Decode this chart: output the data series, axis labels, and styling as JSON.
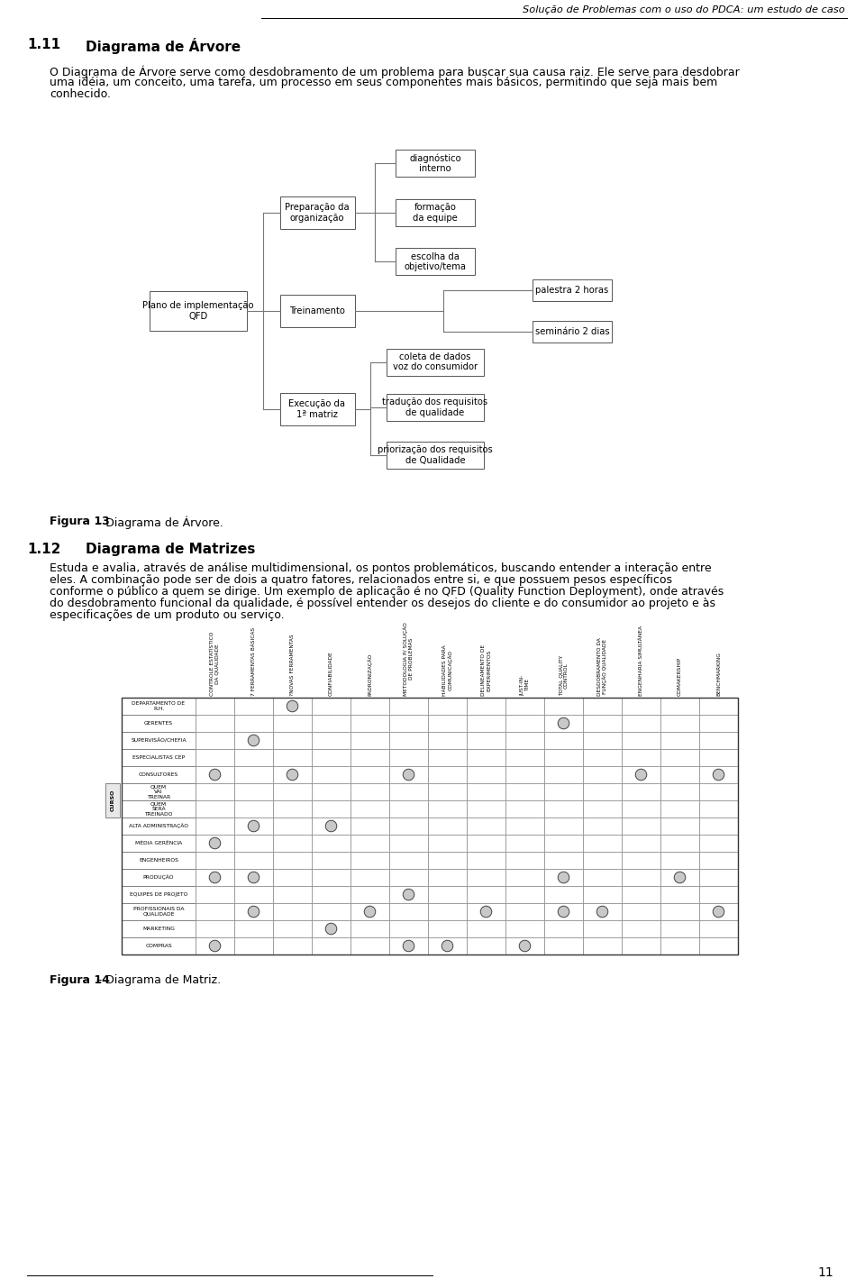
{
  "page_title": "Solução de Problemas com o uso do PDCA: um estudo de caso",
  "page_number": "11",
  "section11_num": "1.11",
  "section11_name": "Diagrama de Árvore",
  "section_text1": "O Diagrama de Árvore serve como desdobramento de um problema para buscar sua causa raiz. Ele serve para desdobrar uma idéia, um conceito, uma tarefa, um processo em seus componentes mais básicos, permitindo que seja mais bem conhecido.",
  "figure13_bold": "Figura 13",
  "figure13_rest": " – Diagrama de Árvore.",
  "section12_num": "1.12",
  "section12_name": "Diagrama de Matrizes",
  "section12_text": "Estuda e avalia, através de análise multidimensional, os pontos problemáticos, buscando entender a interação entre eles. A combinação pode ser de dois a quatro fatores, relacionados entre si, e que possuem pesos específicos conforme o público a quem se dirige. Um exemplo de aplicação é no QFD (Quality Function Deployment), onde através do desdobramento funcional da qualidade, é possível entender os desejos do cliente e do consumidor ao projeto e às especificações de um produto ou serviço.",
  "figure14_bold": "Figura 14",
  "figure14_rest": " – Diagrama de Matriz.",
  "matrix_rows": [
    "DEPARTAMENTO DE\nR.H.",
    "GERENTES",
    "SUPERVISÃO/CHEFIA",
    "ESPECIALISTAS CEP",
    "CONSULTORES",
    "QUEM\nVAI\nTREINAR",
    "QUEM\nSERÁ\nTREINADO",
    "ALTA ADMINISTRAÇÃO",
    "MÉDIA GERÊNCIA",
    "ENGENHEIROS",
    "PRODUÇÃO",
    "EQUIPES DE PROJETO",
    "PROFISSIONAIS DA\nQUALIDADE",
    "MARKETING",
    "COMPRAS"
  ],
  "matrix_cols": [
    "CONTROLE ESTATÍSTICO\nDA QUALIDADE",
    "7 FERRAMENTAS BÁSICAS",
    "?NOVAS FERRAMENTAS",
    "CONFIABILIDADE",
    "PADRONIZAÇÃO",
    "METODOLOGIA P/ SOLUÇÃO\nDE PROBLEMAS",
    "HABILIDADES PARA\nCOMUNICAÇÃO",
    "DELINEAMENTO DE\nEXPERIMENTOS",
    "JUST-IN-\nTIME",
    "TOTAL QUALITY\nCONTROL",
    "DESDOBRAMENTO DA\nFUNÇÃO QUALIDADE",
    "ENGENHARIA SIMULTÂNEA",
    "COMAKERSHIP",
    "BENCHMARKING"
  ],
  "matrix_circles": [
    [
      0,
      0,
      1,
      0,
      0,
      0,
      0,
      0,
      0,
      0,
      0,
      0,
      0,
      0
    ],
    [
      0,
      0,
      0,
      0,
      0,
      0,
      0,
      0,
      0,
      1,
      0,
      0,
      0,
      0
    ],
    [
      0,
      1,
      0,
      0,
      0,
      0,
      0,
      0,
      0,
      0,
      0,
      0,
      0,
      0
    ],
    [
      0,
      0,
      0,
      0,
      0,
      0,
      0,
      0,
      0,
      0,
      0,
      0,
      0,
      0
    ],
    [
      1,
      0,
      1,
      0,
      0,
      1,
      0,
      0,
      0,
      0,
      0,
      1,
      0,
      1
    ],
    [
      0,
      0,
      0,
      0,
      0,
      0,
      0,
      0,
      0,
      0,
      0,
      0,
      0,
      0
    ],
    [
      0,
      0,
      0,
      0,
      0,
      0,
      0,
      0,
      0,
      0,
      0,
      0,
      0,
      0
    ],
    [
      0,
      1,
      0,
      1,
      0,
      0,
      0,
      0,
      0,
      0,
      0,
      0,
      0,
      0
    ],
    [
      1,
      0,
      0,
      0,
      0,
      0,
      0,
      0,
      0,
      0,
      0,
      0,
      0,
      0
    ],
    [
      0,
      0,
      0,
      0,
      0,
      0,
      0,
      0,
      0,
      0,
      0,
      0,
      0,
      0
    ],
    [
      1,
      1,
      0,
      0,
      0,
      0,
      0,
      0,
      0,
      1,
      0,
      0,
      1,
      0
    ],
    [
      0,
      0,
      0,
      0,
      0,
      1,
      0,
      0,
      0,
      0,
      0,
      0,
      0,
      0
    ],
    [
      0,
      1,
      0,
      0,
      1,
      0,
      0,
      1,
      0,
      1,
      1,
      0,
      0,
      1
    ],
    [
      0,
      0,
      0,
      1,
      0,
      0,
      0,
      0,
      0,
      0,
      0,
      0,
      0,
      0
    ],
    [
      1,
      0,
      0,
      0,
      0,
      1,
      1,
      0,
      1,
      0,
      0,
      0,
      0,
      0
    ]
  ],
  "quem_rows": [
    5,
    6
  ],
  "background_color": "#ffffff"
}
